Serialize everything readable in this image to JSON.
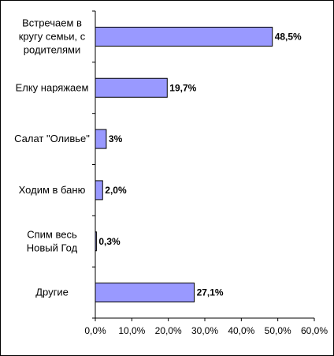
{
  "chart_data": {
    "type": "bar",
    "orientation": "horizontal",
    "categories": [
      [
        "Встречаем в",
        "кругу семьи, с",
        "родителями"
      ],
      [
        "Елку наряжаем"
      ],
      [
        "Салат \"Оливье\""
      ],
      [
        "Ходим в баню"
      ],
      [
        "Спим весь",
        "Новый Год"
      ],
      [
        "Другие"
      ]
    ],
    "values": [
      48.5,
      19.7,
      3,
      2.0,
      0.3,
      27.1
    ],
    "value_labels": [
      "48,5%",
      "19,7%",
      "3%",
      "2,0%",
      "0,3%",
      "27,1%"
    ],
    "x_ticks": [
      "0,0%",
      "10,0%",
      "20,0%",
      "30,0%",
      "40,0%",
      "50,0%",
      "60,0%"
    ],
    "xlim": [
      0,
      60
    ],
    "grid": false,
    "legend": "none",
    "bar_color": "#9999ff",
    "bar_edge_color": "#000000"
  }
}
